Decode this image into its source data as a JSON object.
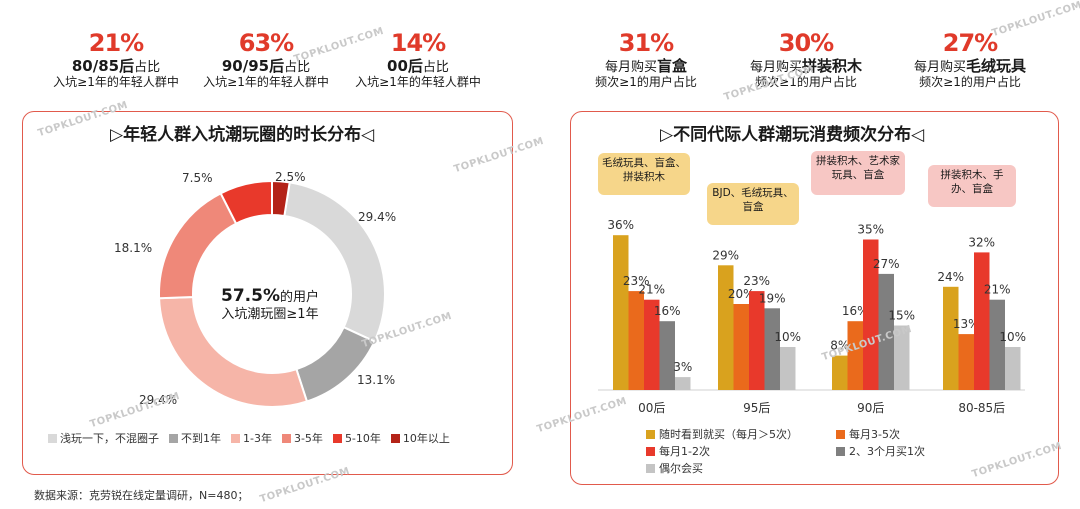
{
  "stats": [
    {
      "pct": "21%",
      "l1_bold": "80/85后",
      "l1_rest": "占比",
      "l2": "入坑≥1年的年轻人群中"
    },
    {
      "pct": "63%",
      "l1_bold": "90/95后",
      "l1_rest": "占比",
      "l2": "入坑≥1年的年轻人群中"
    },
    {
      "pct": "14%",
      "l1_bold": "00后",
      "l1_rest": "占比",
      "l2": "入坑≥1年的年轻人群中"
    },
    {
      "pct": "31%",
      "l1_pre": "每月购买",
      "l1_bold": "盲盒",
      "l2": "频次≥1的用户占比"
    },
    {
      "pct": "30%",
      "l1_pre": "每月购买",
      "l1_bold": "拼装积木",
      "l2": "频次≥1的用户占比"
    },
    {
      "pct": "27%",
      "l1_pre": "每月购买",
      "l1_bold": "毛绒玩具",
      "l2": "频次≥1的用户占比"
    }
  ],
  "donut": {
    "title": "▷年轻人群入坑潮玩圈的时长分布◁",
    "center_bold": "57.5%",
    "center_rest": "的用户",
    "center_line2": "入坑潮玩圈≥1年",
    "colors": {
      "c0": "#d9d9d9",
      "c1": "#a5a5a5",
      "c2": "#f6b5a8",
      "c3": "#ef8879",
      "c4": "#e8392b",
      "c5": "#b42318"
    }
  },
  "bars": {
    "title": "▷不同代际人群潮玩消费频次分布◁",
    "colors": {
      "c0": "#d9a21e",
      "c1": "#ea6a1c",
      "c2": "#e8392b",
      "c3": "#7f7f7f",
      "c4": "#c4c4c4"
    },
    "bubbles": [
      "毛绒玩具、盲盒、拼装积木",
      "BJD、毛绒玩具、盲盒",
      "拼装积木、艺术家玩具、盲盒",
      "拼装积木、手办、盲盒"
    ]
  },
  "chart_data": [
    {
      "type": "pie",
      "title": "年轻人群入坑潮玩圈的时长分布",
      "categories": [
        "浅玩一下，不混圈子",
        "不到1年",
        "1-3年",
        "3-5年",
        "5-10年",
        "10年以上"
      ],
      "values": [
        29.4,
        13.1,
        29.4,
        18.1,
        7.5,
        2.5
      ],
      "labels": [
        "29.4%",
        "13.1%",
        "29.4%",
        "18.1%",
        "7.5%",
        "2.5%"
      ]
    },
    {
      "type": "bar",
      "title": "不同代际人群潮玩消费频次分布",
      "categories": [
        "00后",
        "95后",
        "90后",
        "80-85后"
      ],
      "series": [
        {
          "name": "随时看到就买（每月＞5次）",
          "values": [
            36,
            29,
            8,
            24
          ]
        },
        {
          "name": "每月3-5次",
          "values": [
            23,
            20,
            16,
            13
          ]
        },
        {
          "name": "每月1-2次",
          "values": [
            21,
            23,
            35,
            32
          ]
        },
        {
          "name": "2、3个月买1次",
          "values": [
            16,
            19,
            27,
            21
          ]
        },
        {
          "name": "偶尔会买",
          "values": [
            3,
            10,
            15,
            10
          ]
        }
      ],
      "ylim": [
        0,
        40
      ]
    }
  ],
  "source": "数据来源：克劳锐在线定量调研，N=480；",
  "watermark": "TOPKLOUT.COM"
}
